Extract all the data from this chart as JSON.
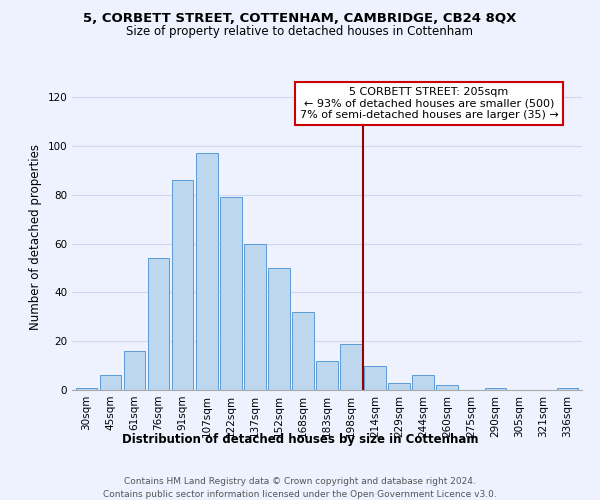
{
  "title": "5, CORBETT STREET, COTTENHAM, CAMBRIDGE, CB24 8QX",
  "subtitle": "Size of property relative to detached houses in Cottenham",
  "xlabel": "Distribution of detached houses by size in Cottenham",
  "ylabel": "Number of detached properties",
  "bar_labels": [
    "30sqm",
    "45sqm",
    "61sqm",
    "76sqm",
    "91sqm",
    "107sqm",
    "122sqm",
    "137sqm",
    "152sqm",
    "168sqm",
    "183sqm",
    "198sqm",
    "214sqm",
    "229sqm",
    "244sqm",
    "260sqm",
    "275sqm",
    "290sqm",
    "305sqm",
    "321sqm",
    "336sqm"
  ],
  "bar_values": [
    1,
    6,
    16,
    54,
    86,
    97,
    79,
    60,
    50,
    32,
    12,
    19,
    10,
    3,
    6,
    2,
    0,
    1,
    0,
    0,
    1
  ],
  "bar_color": "#bdd7ee",
  "bar_edge_color": "#5b9bd5",
  "vline_x": 11.5,
  "vline_color": "#990000",
  "annotation_title": "5 CORBETT STREET: 205sqm",
  "annotation_line1": "← 93% of detached houses are smaller (500)",
  "annotation_line2": "7% of semi-detached houses are larger (35) →",
  "annotation_box_color": "#ffffff",
  "annotation_box_edge": "#cc0000",
  "footer1": "Contains HM Land Registry data © Crown copyright and database right 2024.",
  "footer2": "Contains public sector information licensed under the Open Government Licence v3.0.",
  "ylim": [
    0,
    125
  ],
  "background_color": "#eef2ff",
  "grid_color": "#d0d8f0",
  "title_fontsize": 9.5,
  "subtitle_fontsize": 8.5,
  "axis_label_fontsize": 8.5,
  "tick_fontsize": 7.5,
  "annot_fontsize": 8.0,
  "footer_fontsize": 6.5
}
